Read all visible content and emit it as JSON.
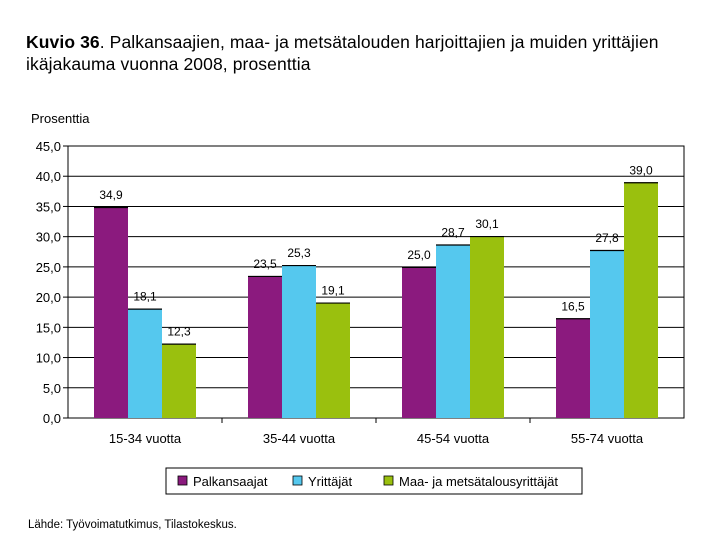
{
  "title": {
    "lead": "Kuvio 36",
    "text": ". Palkansaajien, maa- ja metsätalouden harjoittajien ja muiden yrittäjien ikäjakauma vuonna 2008, prosenttia"
  },
  "source": "Lähde: Työvoimatutkimus, Tilastokeskus.",
  "chart_data": {
    "type": "bar",
    "title": "Kuvio 36. Palkansaajien, maa- ja metsätalouden harjoittajien ja muiden yrittäjien ikäjakauma vuonna 2008, prosenttia",
    "ylabel": "Prosenttia",
    "xlabel": "",
    "ylim": [
      0,
      45
    ],
    "yticks": [
      "0,0",
      "5,0",
      "10,0",
      "15,0",
      "20,0",
      "25,0",
      "30,0",
      "35,0",
      "40,0",
      "45,0"
    ],
    "ytick_values": [
      0,
      5,
      10,
      15,
      20,
      25,
      30,
      35,
      40,
      45
    ],
    "grid": true,
    "legend_position": "bottom",
    "categories": [
      "15-34 vuotta",
      "35-44 vuotta",
      "45-54 vuotta",
      "55-74 vuotta"
    ],
    "series": [
      {
        "name": "Palkansaajat",
        "color": "#8b1a7e",
        "values": [
          34.9,
          23.5,
          25.0,
          16.5
        ],
        "labels": [
          "34,9",
          "23,5",
          "25,0",
          "16,5"
        ]
      },
      {
        "name": "Yrittäjät",
        "color": "#55c8ee",
        "values": [
          18.1,
          25.3,
          28.7,
          27.8
        ],
        "labels": [
          "18,1",
          "25,3",
          "28,7",
          "27,8"
        ]
      },
      {
        "name": "Maa- ja metsätalousyrittäjät",
        "color": "#9ac00e",
        "values": [
          12.3,
          19.1,
          30.1,
          39.0
        ],
        "labels": [
          "12,3",
          "19,1",
          "30,1",
          "39,0"
        ]
      }
    ]
  }
}
